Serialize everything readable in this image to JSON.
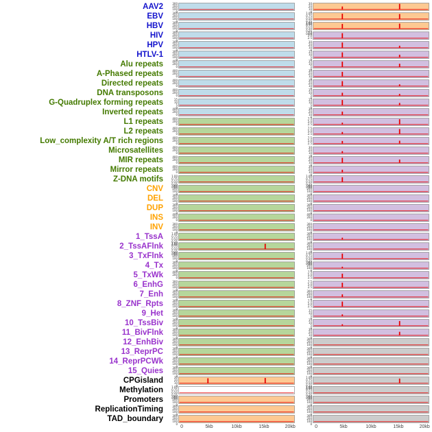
{
  "chart_data": {
    "type": "line",
    "title": "",
    "xlabel": "",
    "series_color": "#e60000",
    "x_axis": {
      "ticks": [
        "0",
        "5kb",
        "10kb",
        "15kb",
        "20kb"
      ],
      "positions_pct": [
        3,
        26.5,
        50,
        73.5,
        96
      ],
      "range_kb": [
        0,
        20
      ]
    },
    "label_colors": {
      "virus": "#1212cc",
      "repeat": "#447a00",
      "sv": "#ffa200",
      "chromatin": "#9933cc",
      "other": "#000000"
    },
    "panel_colors": {
      "blue": "#bfdcea",
      "green": "#b6d69b",
      "orange": "#fdc992",
      "purple": "#d2bfe0",
      "gray": "#cccccc",
      "white": "#ffffff"
    },
    "tick_sets": {
      "a": [
        "300",
        "200",
        "100",
        "0"
      ],
      "b": [
        "1.00",
        "0.75",
        "0.50",
        "0.25",
        "0.00"
      ],
      "c": [
        "400",
        "200",
        "0"
      ],
      "d": [
        "30",
        "20",
        "10",
        "0"
      ],
      "e": [
        "7.5",
        "5.0",
        "2.5"
      ],
      "g": [
        "15",
        "10",
        "5",
        "0"
      ]
    },
    "rows": [
      {
        "label": "AAV2",
        "cat": "virus",
        "left": {
          "fill": "blue",
          "yt": "a",
          "spikes": []
        },
        "right": {
          "fill": "orange",
          "yt": "d",
          "spikes": [
            [
              5,
              0.5
            ],
            [
              15,
              0.95
            ]
          ]
        }
      },
      {
        "label": "EBV",
        "cat": "virus",
        "left": {
          "fill": "blue",
          "yt": "a",
          "spikes": []
        },
        "right": {
          "fill": "orange",
          "yt": "b",
          "spikes": [
            [
              5,
              0.9
            ],
            [
              15,
              0.85
            ]
          ]
        }
      },
      {
        "label": "HBV",
        "cat": "virus",
        "left": {
          "fill": "blue",
          "yt": "a",
          "spikes": []
        },
        "right": {
          "fill": "orange",
          "yt": "b",
          "spikes": [
            [
              5,
              0.8
            ],
            [
              15,
              0.85
            ]
          ]
        }
      },
      {
        "label": "HIV",
        "cat": "virus",
        "left": {
          "fill": "blue",
          "yt": "a",
          "spikes": []
        },
        "right": {
          "fill": "purple",
          "yt": "e",
          "spikes": [
            [
              5,
              0.85
            ]
          ]
        }
      },
      {
        "label": "HPV",
        "cat": "virus",
        "left": {
          "fill": "blue",
          "yt": "a",
          "spikes": []
        },
        "right": {
          "fill": "purple",
          "yt": "d",
          "spikes": [
            [
              5,
              0.9
            ],
            [
              15,
              0.35
            ]
          ]
        }
      },
      {
        "label": "HTLV-1",
        "cat": "virus",
        "left": {
          "fill": "blue",
          "yt": "a",
          "spikes": []
        },
        "right": {
          "fill": "purple",
          "yt": "g",
          "spikes": [
            [
              5,
              0.85
            ],
            [
              15,
              0.45
            ]
          ]
        }
      },
      {
        "label": "Alu repeats",
        "cat": "repeat",
        "left": {
          "fill": "blue",
          "yt": "c",
          "spikes": []
        },
        "right": {
          "fill": "purple",
          "yt": "g",
          "spikes": [
            [
              5,
              0.9
            ],
            [
              15,
              0.55
            ]
          ]
        }
      },
      {
        "label": "A-Phased repeats",
        "cat": "repeat",
        "left": {
          "fill": "blue",
          "yt": "c",
          "spikes": []
        },
        "right": {
          "fill": "purple",
          "yt": "d",
          "spikes": [
            [
              5,
              0.8
            ]
          ]
        }
      },
      {
        "label": "Directed repeats",
        "cat": "repeat",
        "left": {
          "fill": "blue",
          "yt": "c",
          "spikes": []
        },
        "right": {
          "fill": "purple",
          "yt": "d",
          "spikes": [
            [
              5,
              0.85
            ],
            [
              15,
              0.3
            ]
          ]
        }
      },
      {
        "label": "DNA transposons",
        "cat": "repeat",
        "left": {
          "fill": "blue",
          "yt": "c",
          "spikes": []
        },
        "right": {
          "fill": "purple",
          "yt": "g",
          "spikes": [
            [
              5,
              0.5
            ],
            [
              15,
              0.3
            ]
          ]
        }
      },
      {
        "label": "G-Quadruplex forming repeats",
        "cat": "repeat",
        "left": {
          "fill": "blue",
          "yt": "g",
          "spikes": []
        },
        "right": {
          "fill": "purple",
          "yt": "g",
          "spikes": [
            [
              5,
              0.9
            ],
            [
              15,
              0.4
            ]
          ]
        }
      },
      {
        "label": "Inverted repeats",
        "cat": "repeat",
        "left": {
          "fill": "blue",
          "yt": "c",
          "spikes": []
        },
        "right": {
          "fill": "purple",
          "yt": "d",
          "spikes": [
            [
              5,
              0.55
            ]
          ]
        }
      },
      {
        "label": "L1 repeats",
        "cat": "repeat",
        "left": {
          "fill": "green",
          "yt": "c",
          "spikes": []
        },
        "right": {
          "fill": "purple",
          "yt": "e",
          "spikes": [
            [
              5,
              0.3
            ],
            [
              15,
              0.9
            ]
          ]
        }
      },
      {
        "label": "L2 repeats",
        "cat": "repeat",
        "left": {
          "fill": "green",
          "yt": "c",
          "spikes": []
        },
        "right": {
          "fill": "purple",
          "yt": "e",
          "spikes": [
            [
              5,
              0.35
            ],
            [
              15,
              0.85
            ]
          ]
        }
      },
      {
        "label": "Low_complexity A/T rich regions",
        "cat": "repeat",
        "left": {
          "fill": "green",
          "yt": "c",
          "spikes": []
        },
        "right": {
          "fill": "purple",
          "yt": "e",
          "spikes": [
            [
              5,
              0.45
            ],
            [
              15,
              0.5
            ]
          ]
        }
      },
      {
        "label": "Microsatellites",
        "cat": "repeat",
        "left": {
          "fill": "green",
          "yt": "c",
          "spikes": []
        },
        "right": {
          "fill": "purple",
          "yt": "d",
          "spikes": [
            [
              5,
              0.35
            ]
          ]
        }
      },
      {
        "label": "MIR repeats",
        "cat": "repeat",
        "left": {
          "fill": "green",
          "yt": "c",
          "spikes": []
        },
        "right": {
          "fill": "purple",
          "yt": "d",
          "spikes": [
            [
              5,
              0.85
            ],
            [
              15,
              0.55
            ]
          ]
        }
      },
      {
        "label": "Mirror repeats",
        "cat": "repeat",
        "left": {
          "fill": "green",
          "yt": "c",
          "spikes": []
        },
        "right": {
          "fill": "purple",
          "yt": "d",
          "spikes": [
            [
              5,
              0.45
            ]
          ]
        }
      },
      {
        "label": "Z-DNA motifs",
        "cat": "repeat",
        "left": {
          "fill": "green",
          "yt": "b",
          "spikes": []
        },
        "right": {
          "fill": "purple",
          "yt": "b",
          "spikes": [
            [
              5,
              0.8
            ]
          ]
        }
      },
      {
        "label": "CNV",
        "cat": "sv",
        "left": {
          "fill": "green",
          "yt": "a",
          "spikes": []
        },
        "right": {
          "fill": "purple",
          "yt": "a",
          "spikes": []
        }
      },
      {
        "label": "DEL",
        "cat": "sv",
        "left": {
          "fill": "green",
          "yt": "a",
          "spikes": []
        },
        "right": {
          "fill": "purple",
          "yt": "a",
          "spikes": []
        }
      },
      {
        "label": "DUP",
        "cat": "sv",
        "left": {
          "fill": "green",
          "yt": "a",
          "spikes": []
        },
        "right": {
          "fill": "purple",
          "yt": "a",
          "spikes": []
        }
      },
      {
        "label": "INS",
        "cat": "sv",
        "left": {
          "fill": "green",
          "yt": "c",
          "spikes": []
        },
        "right": {
          "fill": "purple",
          "yt": "c",
          "spikes": []
        }
      },
      {
        "label": "INV",
        "cat": "sv",
        "left": {
          "fill": "green",
          "yt": "a",
          "spikes": []
        },
        "right": {
          "fill": "purple",
          "yt": "a",
          "spikes": []
        }
      },
      {
        "label": "1_TssA",
        "cat": "chromatin",
        "left": {
          "fill": "green",
          "yt": "b",
          "spikes": []
        },
        "right": {
          "fill": "purple",
          "yt": "a",
          "spikes": [
            [
              5,
              0.3
            ]
          ]
        }
      },
      {
        "label": "2_TssAFlnk",
        "cat": "chromatin",
        "left": {
          "fill": "green",
          "yt": "b",
          "spikes": [
            [
              15,
              0.9
            ]
          ]
        },
        "right": {
          "fill": "purple",
          "yt": "a",
          "spikes": []
        }
      },
      {
        "label": "3_TxFlnk",
        "cat": "chromatin",
        "left": {
          "fill": "green",
          "yt": "a",
          "spikes": []
        },
        "right": {
          "fill": "purple",
          "yt": "b",
          "spikes": [
            [
              5,
              0.85
            ]
          ]
        }
      },
      {
        "label": "4_Tx",
        "cat": "chromatin",
        "left": {
          "fill": "green",
          "yt": "a",
          "spikes": []
        },
        "right": {
          "fill": "purple",
          "yt": "a",
          "spikes": [
            [
              5,
              0.25
            ]
          ]
        }
      },
      {
        "label": "5_TxWk",
        "cat": "chromatin",
        "left": {
          "fill": "green",
          "yt": "c",
          "spikes": []
        },
        "right": {
          "fill": "purple",
          "yt": "e",
          "spikes": [
            [
              5,
              0.7
            ]
          ]
        }
      },
      {
        "label": "6_EnhG",
        "cat": "chromatin",
        "left": {
          "fill": "green",
          "yt": "a",
          "spikes": []
        },
        "right": {
          "fill": "purple",
          "yt": "e",
          "spikes": [
            [
              5,
              0.8
            ]
          ]
        }
      },
      {
        "label": "7_Enh",
        "cat": "chromatin",
        "left": {
          "fill": "green",
          "yt": "a",
          "spikes": []
        },
        "right": {
          "fill": "purple",
          "yt": "a",
          "spikes": [
            [
              5,
              0.45
            ]
          ]
        }
      },
      {
        "label": "8_ZNF_Rpts",
        "cat": "chromatin",
        "left": {
          "fill": "green",
          "yt": "a",
          "spikes": []
        },
        "right": {
          "fill": "purple",
          "yt": "e",
          "spikes": [
            [
              5,
              0.85
            ]
          ]
        }
      },
      {
        "label": "9_Het",
        "cat": "chromatin",
        "left": {
          "fill": "green",
          "yt": "a",
          "spikes": []
        },
        "right": {
          "fill": "purple",
          "yt": "g",
          "spikes": [
            [
              5,
              0.3
            ]
          ]
        }
      },
      {
        "label": "10_TssBiv",
        "cat": "chromatin",
        "left": {
          "fill": "green",
          "yt": "a",
          "spikes": []
        },
        "right": {
          "fill": "purple",
          "yt": "g",
          "spikes": [
            [
              5,
              0.25
            ],
            [
              15,
              0.8
            ]
          ]
        }
      },
      {
        "label": "11_BivFlnk",
        "cat": "chromatin",
        "left": {
          "fill": "green",
          "yt": "a",
          "spikes": []
        },
        "right": {
          "fill": "purple",
          "yt": "d",
          "spikes": [
            [
              15,
              0.6
            ]
          ]
        }
      },
      {
        "label": "12_EnhBiv",
        "cat": "chromatin",
        "left": {
          "fill": "green",
          "yt": "a",
          "spikes": []
        },
        "right": {
          "fill": "gray",
          "yt": "a",
          "spikes": []
        }
      },
      {
        "label": "13_ReprPC",
        "cat": "chromatin",
        "left": {
          "fill": "green",
          "yt": "a",
          "spikes": []
        },
        "right": {
          "fill": "gray",
          "yt": "a",
          "spikes": []
        }
      },
      {
        "label": "14_ReprPCWk",
        "cat": "chromatin",
        "left": {
          "fill": "green",
          "yt": "a",
          "spikes": []
        },
        "right": {
          "fill": "gray",
          "yt": "a",
          "spikes": []
        }
      },
      {
        "label": "15_Quies",
        "cat": "chromatin",
        "left": {
          "fill": "green",
          "yt": "a",
          "spikes": []
        },
        "right": {
          "fill": "gray",
          "yt": "a",
          "spikes": []
        }
      },
      {
        "label": "CPGisland",
        "cat": "other",
        "left": {
          "fill": "orange",
          "yt": "d",
          "spikes": [
            [
              5,
              0.85
            ],
            [
              15,
              0.9
            ]
          ]
        },
        "right": {
          "fill": "gray",
          "yt": "b",
          "spikes": [
            [
              15,
              0.8
            ]
          ]
        }
      },
      {
        "label": "Methylation",
        "cat": "other",
        "left": {
          "fill": "white",
          "yt": "b",
          "spikes": []
        },
        "right": {
          "fill": "gray",
          "yt": "b",
          "spikes": []
        }
      },
      {
        "label": "Promoters",
        "cat": "other",
        "left": {
          "fill": "orange",
          "yt": "a",
          "spikes": []
        },
        "right": {
          "fill": "gray",
          "yt": "a",
          "spikes": []
        }
      },
      {
        "label": "ReplicationTiming",
        "cat": "other",
        "left": {
          "fill": "orange",
          "yt": "a",
          "spikes": []
        },
        "right": {
          "fill": "gray",
          "yt": "a",
          "spikes": []
        }
      },
      {
        "label": "TAD_boundary",
        "cat": "other",
        "left": {
          "fill": "orange",
          "yt": "a",
          "spikes": []
        },
        "right": {
          "fill": "gray",
          "yt": "a",
          "spikes": []
        }
      }
    ]
  }
}
